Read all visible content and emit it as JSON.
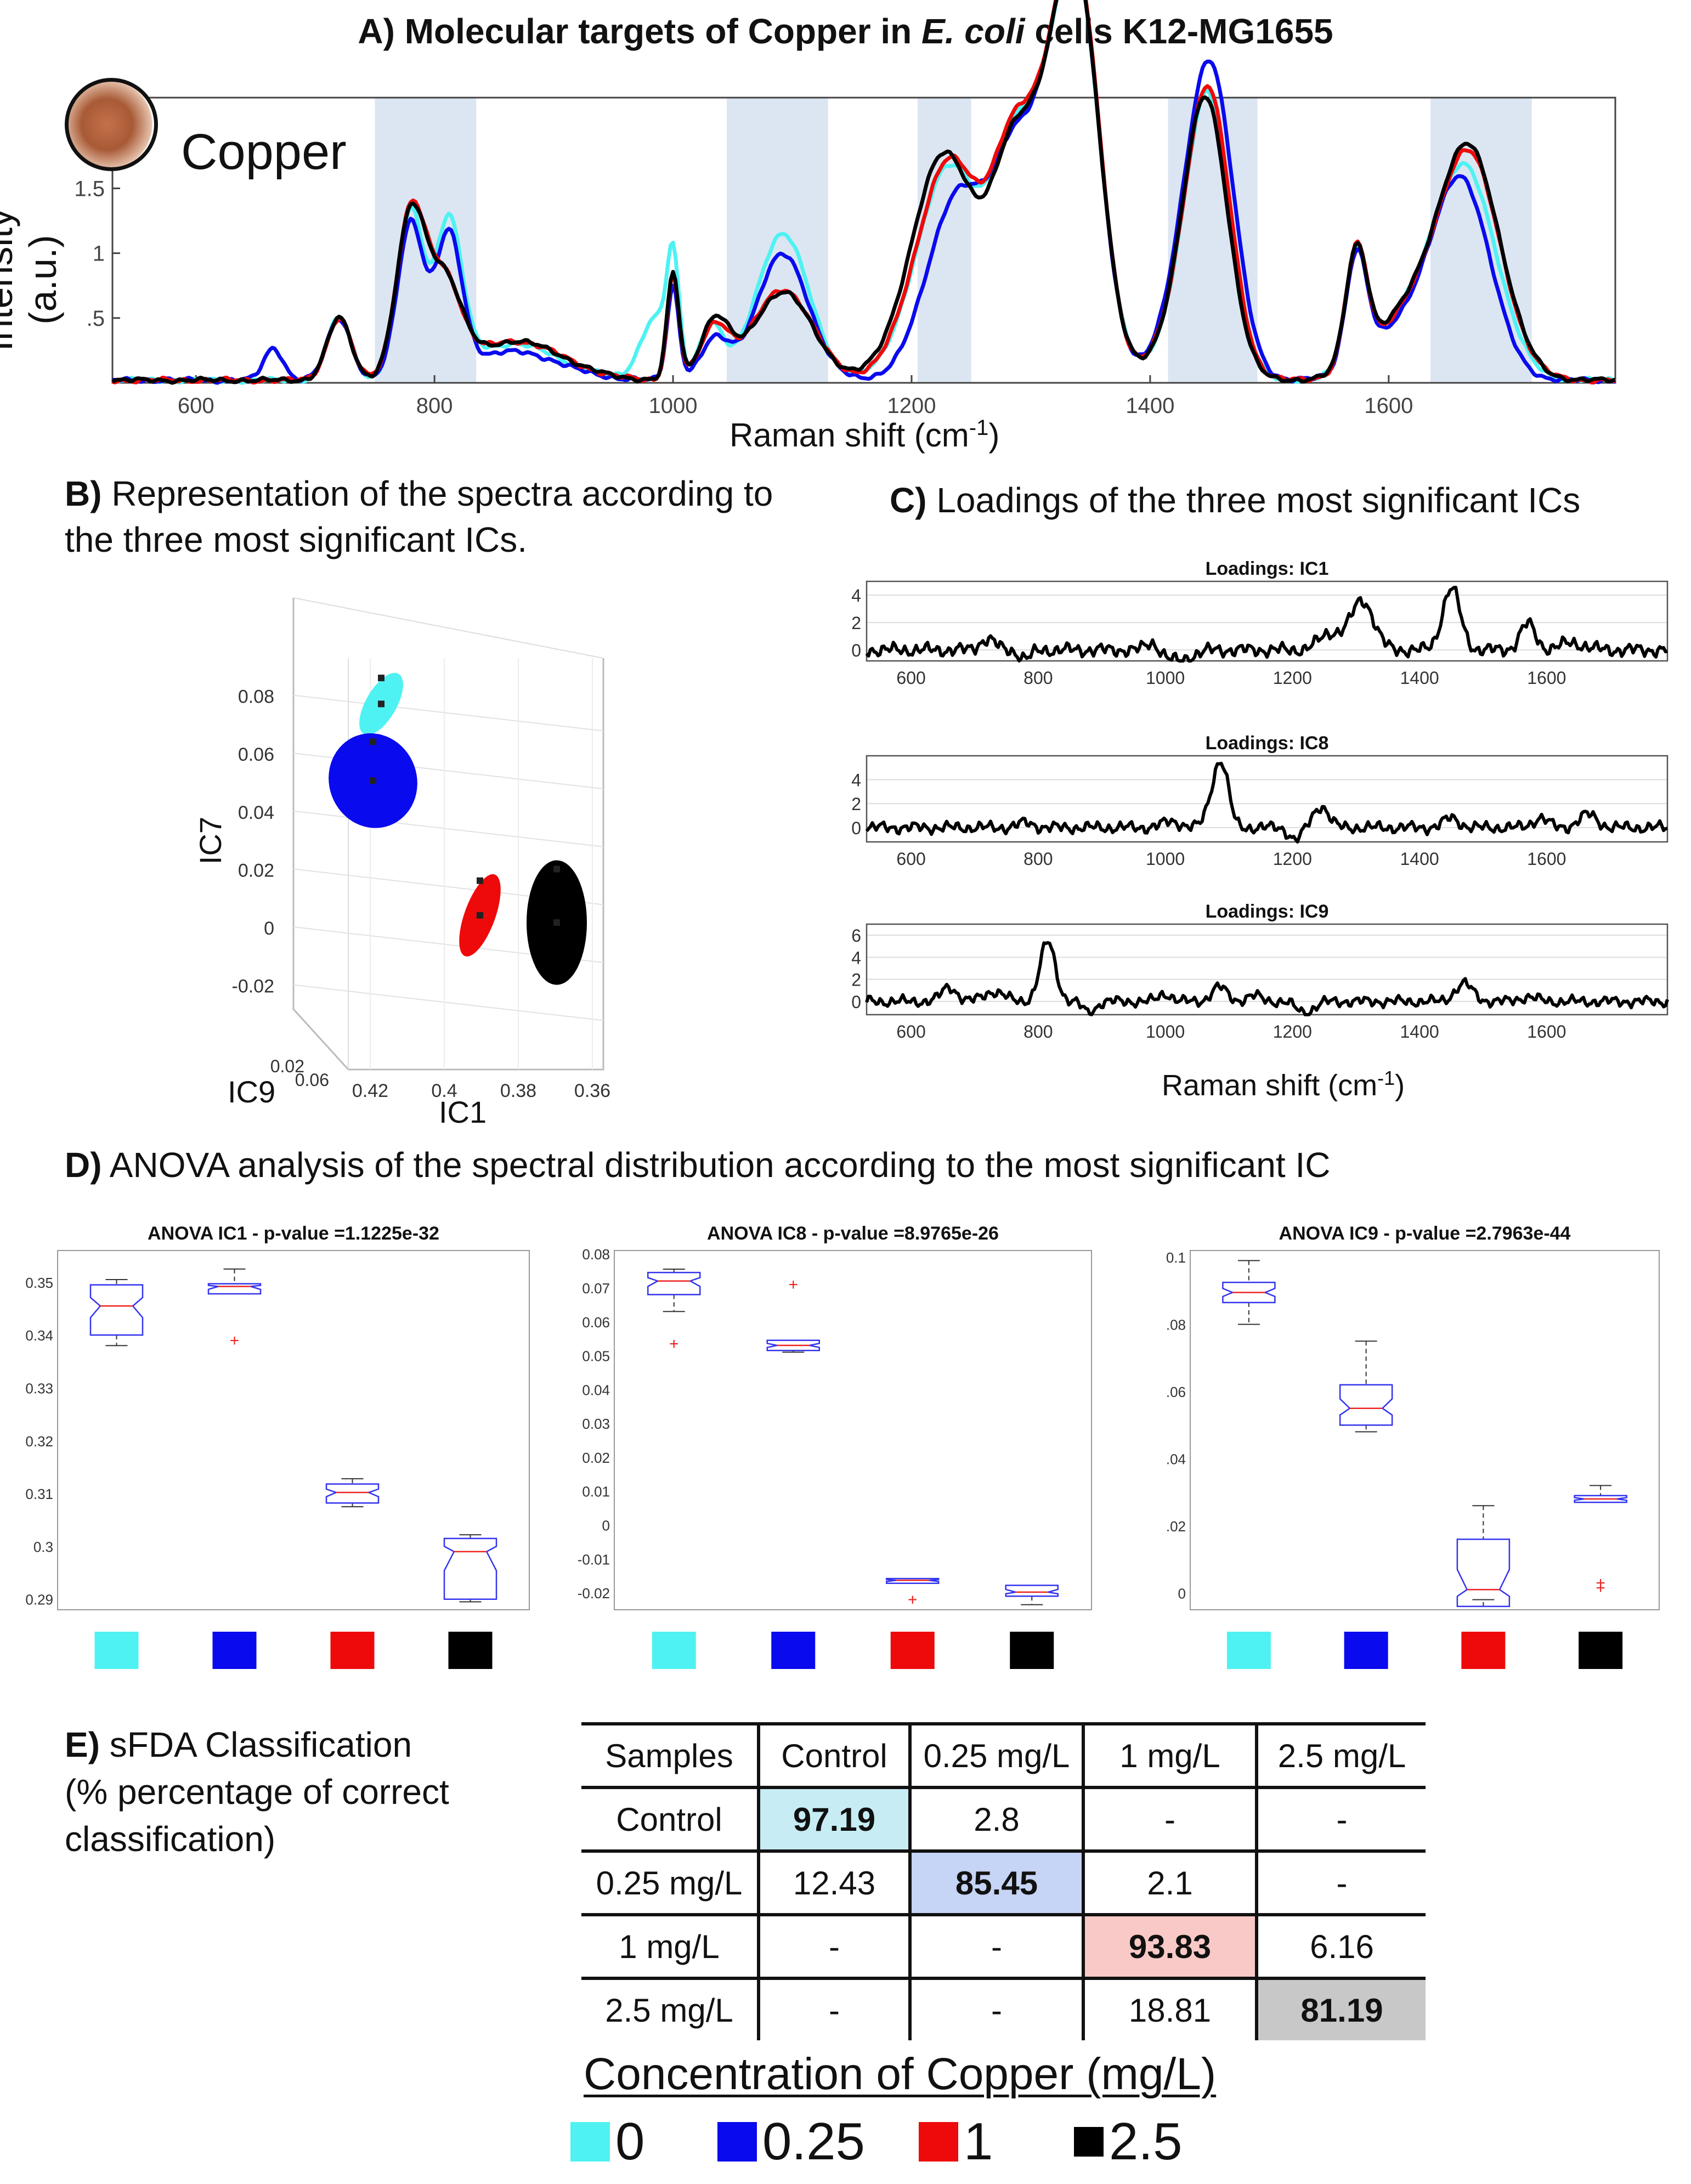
{
  "panel_a": {
    "label": "A)",
    "title_pre": "Molecular targets of Copper in ",
    "title_italic": "E. coli",
    "title_post": " cells K12-MG1655",
    "inset_label": "Copper",
    "ylabel": "Intensity (a.u.)",
    "xlabel": "Raman shift (cm",
    "xlabel_sup": "-1",
    "xlabel_close": ")"
  },
  "panel_b": {
    "label": "B)",
    "title_line1": "Representation of the spectra according to",
    "title_line2": "the three most significant ICs.",
    "ic7_label": "IC7",
    "ic9_label": "IC9",
    "ic1_label": "IC1"
  },
  "panel_c": {
    "label": "C)",
    "title": "Loadings of the three most significant  ICs",
    "xlabel": "Raman shift (cm",
    "xlabel_sup": "-1",
    "xlabel_close": ")"
  },
  "panel_d": {
    "label": "D)",
    "title": "ANOVA analysis of the spectral distribution according to the most significant IC"
  },
  "panel_e": {
    "label": "E)",
    "title_line1": "sFDA Classification",
    "title_line2": "(% percentage of correct",
    "title_line3": "classification)",
    "header": [
      "Samples",
      "Control",
      "0.25 mg/L",
      "1 mg/L",
      "2.5 mg/L"
    ],
    "rows": [
      [
        "Control",
        "97.19",
        "2.8",
        "-",
        "-"
      ],
      [
        "0.25 mg/L",
        "12.43",
        "85.45",
        "2.1",
        "-"
      ],
      [
        "1 mg/L",
        "-",
        "-",
        "93.83",
        "6.16"
      ],
      [
        "2.5 mg/L",
        "-",
        "-",
        "18.81",
        "81.19"
      ]
    ]
  },
  "legend": {
    "title": "Concentration of Copper (mg/L)",
    "items": [
      {
        "label": "0",
        "color": "#4ff2f2"
      },
      {
        "label": "0.25",
        "color": "#0a0aee"
      },
      {
        "label": "1",
        "color": "#ee0a0a"
      },
      {
        "label": "2.5",
        "color": "#000000"
      }
    ]
  },
  "colors": {
    "control": "#4ff2f2",
    "c025": "#0a0aee",
    "c1": "#ee0a0a",
    "c25": "#000000",
    "highlight_band": "#dce6f2",
    "diag_control": "#c7ecf4",
    "diag_025": "#c6d4f5",
    "diag_1": "#f8c9c6",
    "diag_25": "#c8c8c8"
  },
  "chart_data": [
    {
      "id": "raman_spectra",
      "type": "line",
      "title": "Molecular targets of Copper in E. coli cells K12-MG1655",
      "xlabel": "Raman shift (cm-1)",
      "ylabel": "Intensity (a.u.)",
      "xlim": [
        530,
        1790
      ],
      "ylim": [
        0,
        2.2
      ],
      "xticks": [
        600,
        800,
        1000,
        1200,
        1400,
        1600
      ],
      "yticks": [
        0.5,
        1,
        1.5
      ],
      "ytick_labels": [
        ".5",
        "1",
        "1.5"
      ],
      "highlight_ranges": [
        [
          750,
          835
        ],
        [
          1045,
          1130
        ],
        [
          1205,
          1250
        ],
        [
          1415,
          1490
        ],
        [
          1635,
          1720
        ]
      ],
      "series": [
        {
          "name": "0",
          "color": "#4ff2f2",
          "peaks": [
            [
              720,
              0.48,
              10
            ],
            [
              780,
              1.28,
              11
            ],
            [
              812,
              1.15,
              11
            ],
            [
              865,
              0.28,
              40
            ],
            [
              985,
              0.48,
              12
            ],
            [
              1000,
              0.83,
              5
            ],
            [
              1032,
              0.42,
              10
            ],
            [
              1092,
              1.13,
              22
            ],
            [
              1232,
              1.65,
              28
            ],
            [
              1282,
              0.9,
              16
            ],
            [
              1318,
              1.9,
              26
            ],
            [
              1342,
              1.9,
              18
            ],
            [
              1450,
              1.85,
              18
            ],
            [
              1432,
              0.5,
              22
            ],
            [
              1573,
              0.88,
              9
            ],
            [
              1615,
              0.42,
              30
            ],
            [
              1665,
              1.55,
              26
            ]
          ]
        },
        {
          "name": "0.25",
          "color": "#0a0aee",
          "peaks": [
            [
              665,
              0.25,
              8
            ],
            [
              720,
              0.48,
              10
            ],
            [
              780,
              1.2,
              11
            ],
            [
              812,
              1.05,
              11
            ],
            [
              865,
              0.22,
              40
            ],
            [
              1000,
              0.72,
              5
            ],
            [
              1035,
              0.3,
              12
            ],
            [
              1092,
              0.97,
              22
            ],
            [
              1240,
              1.45,
              26
            ],
            [
              1282,
              0.85,
              16
            ],
            [
              1318,
              1.88,
              25
            ],
            [
              1342,
              1.98,
              18
            ],
            [
              1452,
              2.06,
              19
            ],
            [
              1432,
              0.6,
              22
            ],
            [
              1573,
              0.86,
              9
            ],
            [
              1615,
              0.4,
              30
            ],
            [
              1662,
              1.45,
              24
            ]
          ]
        },
        {
          "name": "1",
          "color": "#ee0a0a",
          "peaks": [
            [
              720,
              0.48,
              10
            ],
            [
              780,
              1.25,
              12
            ],
            [
              808,
              0.7,
              14
            ],
            [
              868,
              0.3,
              40
            ],
            [
              1000,
              0.8,
              5
            ],
            [
              1035,
              0.4,
              12
            ],
            [
              1092,
              0.7,
              25
            ],
            [
              1232,
              1.7,
              28
            ],
            [
              1282,
              0.92,
              16
            ],
            [
              1318,
              1.92,
              26
            ],
            [
              1342,
              1.92,
              18
            ],
            [
              1450,
              1.9,
              18
            ],
            [
              1432,
              0.5,
              22
            ],
            [
              1573,
              0.88,
              9
            ],
            [
              1615,
              0.45,
              30
            ],
            [
              1668,
              1.68,
              26
            ]
          ]
        },
        {
          "name": "2.5",
          "color": "#000000",
          "peaks": [
            [
              720,
              0.48,
              10
            ],
            [
              780,
              1.23,
              12
            ],
            [
              808,
              0.7,
              14
            ],
            [
              868,
              0.3,
              40
            ],
            [
              1000,
              0.82,
              5
            ],
            [
              1035,
              0.45,
              12
            ],
            [
              1092,
              0.68,
              25
            ],
            [
              1228,
              1.75,
              28
            ],
            [
              1282,
              0.92,
              16
            ],
            [
              1318,
              1.9,
              26
            ],
            [
              1342,
              1.9,
              18
            ],
            [
              1448,
              1.83,
              18
            ],
            [
              1432,
              0.45,
              22
            ],
            [
              1573,
              0.88,
              9
            ],
            [
              1615,
              0.46,
              30
            ],
            [
              1668,
              1.72,
              26
            ]
          ]
        }
      ]
    },
    {
      "id": "ic_scatter_3d",
      "type": "scatter",
      "xlabel": "IC1",
      "ylabel": "IC7",
      "zlabel": "IC9",
      "ic7_ticks": [
        0.08,
        0.06,
        0.04,
        0.02,
        0,
        -0.02
      ],
      "ic7_tick_labels": [
        "0.08",
        "0.06",
        "0.04",
        "0.02",
        "0",
        "-0.02"
      ],
      "ic1_ticks": [
        0.42,
        0.4,
        0.38,
        0.36
      ],
      "ic1_tick_labels": [
        "0.42",
        "0.4",
        "0.38",
        "0.36"
      ],
      "ic9_tick_labels": [
        "0.02",
        "0.06"
      ],
      "clusters": [
        {
          "name": "0",
          "color": "#4ff2f2",
          "ic7_range": [
            0.065,
            0.089
          ]
        },
        {
          "name": "0.25",
          "color": "#0a0aee",
          "ic7_range": [
            0.034,
            0.067
          ]
        },
        {
          "name": "1",
          "color": "#ee0a0a",
          "ic7_range": [
            -0.011,
            0.019
          ]
        },
        {
          "name": "2.5",
          "color": "#000000",
          "ic7_range": [
            -0.02,
            0.023
          ]
        }
      ]
    },
    {
      "id": "loadings",
      "type": "line",
      "xlabel": "Raman shift (cm-1)",
      "xlim": [
        530,
        1790
      ],
      "xticks": [
        600,
        800,
        1000,
        1200,
        1400,
        1600
      ],
      "subplots": [
        {
          "title": "Loadings: IC1",
          "ylim": [
            -0.8,
            5
          ],
          "yticks": [
            0,
            2,
            4
          ],
          "peaks": [
            [
              720,
              0.8,
              12
            ],
            [
              780,
              -0.6,
              10
            ],
            [
              980,
              0.6,
              10
            ],
            [
              1020,
              -0.8,
              20
            ],
            [
              1260,
              1.2,
              18
            ],
            [
              1310,
              3.6,
              18
            ],
            [
              1450,
              4.5,
              14
            ],
            [
              1570,
              1.9,
              12
            ],
            [
              1640,
              0.5,
              20
            ]
          ]
        },
        {
          "title": "Loadings: IC8",
          "ylim": [
            -1.2,
            6
          ],
          "yticks": [
            0,
            2,
            4
          ],
          "peaks": [
            [
              780,
              0.4,
              12
            ],
            [
              1010,
              0.5,
              15
            ],
            [
              1080,
              3.5,
              12
            ],
            [
              1092,
              3.0,
              10
            ],
            [
              1205,
              -1.0,
              10
            ],
            [
              1245,
              1.8,
              12
            ],
            [
              1450,
              0.8,
              12
            ],
            [
              1590,
              0.8,
              12
            ],
            [
              1665,
              1.1,
              14
            ]
          ]
        },
        {
          "title": "Loadings: IC9",
          "ylim": [
            -1.2,
            7
          ],
          "yticks": [
            0,
            2,
            4,
            6
          ],
          "peaks": [
            [
              660,
              1.3,
              12
            ],
            [
              730,
              0.9,
              16
            ],
            [
              815,
              5.4,
              12
            ],
            [
              880,
              -1.0,
              10
            ],
            [
              1085,
              1.3,
              12
            ],
            [
              1000,
              0.7,
              10
            ],
            [
              1140,
              0.5,
              12
            ],
            [
              1220,
              -1.0,
              14
            ],
            [
              1470,
              1.6,
              14
            ],
            [
              1570,
              0.4,
              14
            ]
          ]
        }
      ]
    },
    {
      "id": "anova_boxplots",
      "type": "box",
      "categories": [
        "0",
        "0.25",
        "1",
        "2.5"
      ],
      "subplots": [
        {
          "title": "ANOVA IC1 - p-value =1.1225e-32",
          "ylim": [
            0.288,
            0.356
          ],
          "yticks": [
            0.29,
            0.3,
            0.31,
            0.32,
            0.33,
            0.34,
            0.35
          ],
          "ytick_labels": [
            "0.29",
            "0.3",
            "0.31",
            "0.32",
            "0.33",
            "0.34",
            "0.35"
          ],
          "boxes": [
            {
              "q1": 0.34,
              "median": 0.3455,
              "q3": 0.3495,
              "wl": 0.338,
              "wh": 0.3505,
              "outliers": []
            },
            {
              "q1": 0.3478,
              "median": 0.3492,
              "q3": 0.3497,
              "wl": 0.3478,
              "wh": 0.3525,
              "outliers": [
                0.339
              ]
            },
            {
              "q1": 0.3082,
              "median": 0.3102,
              "q3": 0.3118,
              "wl": 0.3075,
              "wh": 0.3128,
              "outliers": []
            },
            {
              "q1": 0.29,
              "median": 0.299,
              "q3": 0.3015,
              "wl": 0.2895,
              "wh": 0.3022,
              "outliers": []
            }
          ]
        },
        {
          "title": "ANOVA IC8 - p-value =8.9765e-26",
          "ylim": [
            -0.025,
            0.081
          ],
          "yticks": [
            -0.02,
            -0.01,
            0,
            0.01,
            0.02,
            0.03,
            0.04,
            0.05,
            0.06,
            0.07,
            0.08
          ],
          "ytick_labels": [
            "-0.02",
            "-0.01",
            "0",
            "0.01",
            "0.02",
            "0.03",
            "0.04",
            "0.05",
            "0.06",
            "0.07",
            "0.08"
          ],
          "boxes": [
            {
              "q1": 0.068,
              "median": 0.072,
              "q3": 0.0745,
              "wl": 0.063,
              "wh": 0.0755,
              "outliers": [
                0.0535
              ]
            },
            {
              "q1": 0.0515,
              "median": 0.053,
              "q3": 0.0545,
              "wl": 0.051,
              "wh": 0.0545,
              "outliers": [
                0.071
              ]
            },
            {
              "q1": -0.0172,
              "median": -0.0163,
              "q3": -0.0158,
              "wl": -0.0172,
              "wh": -0.0158,
              "outliers": [
                -0.022
              ]
            },
            {
              "q1": -0.021,
              "median": -0.0198,
              "q3": -0.0178,
              "wl": -0.0235,
              "wh": -0.0178,
              "outliers": []
            }
          ]
        },
        {
          "title": "ANOVA IC9 - p-value =2.7963e-44",
          "ylim": [
            -0.005,
            0.102
          ],
          "yticks": [
            0,
            0.02,
            0.04,
            0.06,
            0.08,
            0.1
          ],
          "ytick_labels": [
            "0",
            ".02",
            ".04",
            ".06",
            ".08",
            "0.1"
          ],
          "boxes": [
            {
              "q1": 0.0865,
              "median": 0.0895,
              "q3": 0.0925,
              "wl": 0.08,
              "wh": 0.099,
              "outliers": []
            },
            {
              "q1": 0.05,
              "median": 0.055,
              "q3": 0.062,
              "wl": 0.048,
              "wh": 0.075,
              "outliers": []
            },
            {
              "q1": -0.004,
              "median": 0.001,
              "q3": 0.016,
              "wl": -0.002,
              "wh": 0.026,
              "outliers": []
            },
            {
              "q1": 0.027,
              "median": 0.028,
              "q3": 0.029,
              "wl": 0.027,
              "wh": 0.032,
              "outliers": [
                0.0015,
                0.003
              ]
            }
          ]
        }
      ]
    }
  ]
}
